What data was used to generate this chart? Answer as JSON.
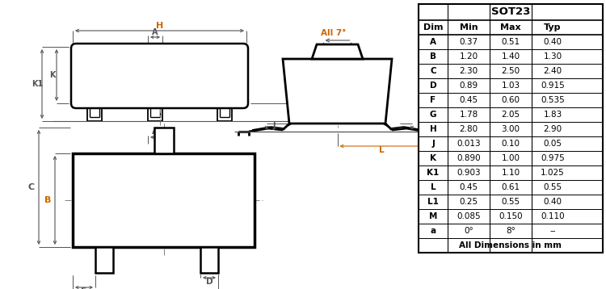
{
  "bg_color": "#ffffff",
  "line_color": "#000000",
  "dim_color": "#555555",
  "orange_color": "#cc6600",
  "table_dim": "SOT23",
  "table_columns": [
    "Dim",
    "Min",
    "Max",
    "Typ"
  ],
  "table_rows": [
    [
      "A",
      "0.37",
      "0.51",
      "0.40"
    ],
    [
      "B",
      "1.20",
      "1.40",
      "1.30"
    ],
    [
      "C",
      "2.30",
      "2.50",
      "2.40"
    ],
    [
      "D",
      "0.89",
      "1.03",
      "0.915"
    ],
    [
      "F",
      "0.45",
      "0.60",
      "0.535"
    ],
    [
      "G",
      "1.78",
      "2.05",
      "1.83"
    ],
    [
      "H",
      "2.80",
      "3.00",
      "2.90"
    ],
    [
      "J",
      "0.013",
      "0.10",
      "0.05"
    ],
    [
      "K",
      "0.890",
      "1.00",
      "0.975"
    ],
    [
      "K1",
      "0.903",
      "1.10",
      "1.025"
    ],
    [
      "L",
      "0.45",
      "0.61",
      "0.55"
    ],
    [
      "L1",
      "0.25",
      "0.55",
      "0.40"
    ],
    [
      "M",
      "0.085",
      "0.150",
      "0.110"
    ],
    [
      "a",
      "0°",
      "8°",
      "--"
    ]
  ],
  "table_footer": "All Dimensions in mm"
}
